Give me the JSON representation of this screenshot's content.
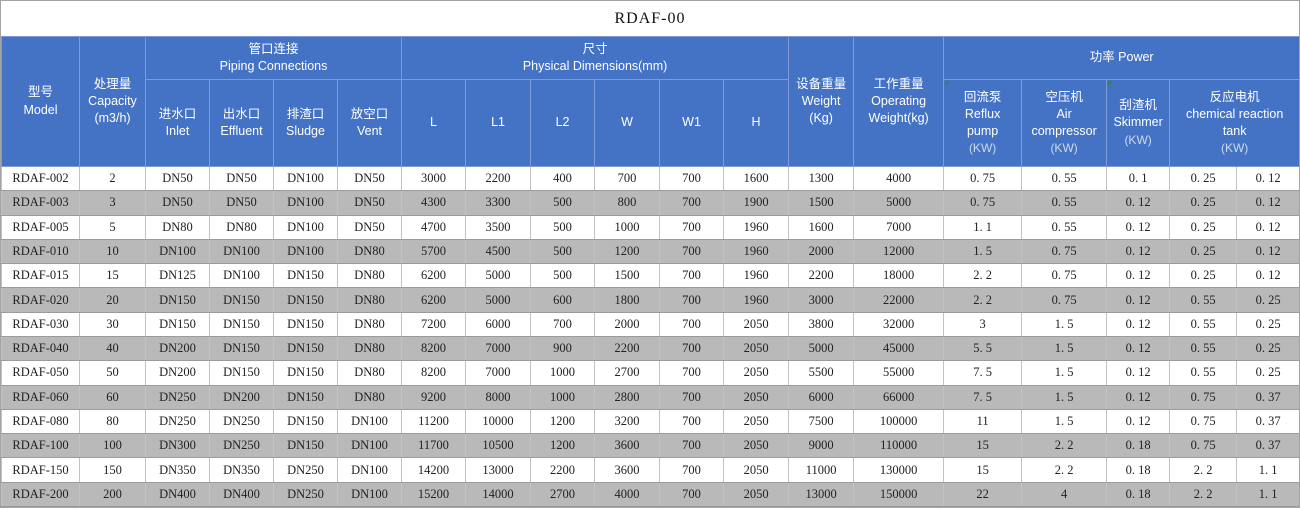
{
  "title": "RDAF-00",
  "colors": {
    "header_bg": "#4472c4",
    "row_alt_gray": "#b9b9b9",
    "corner_marker_green": "#2a8c3c",
    "grid_line": "#9b9b9b"
  },
  "header": {
    "model": "型号\nModel",
    "capacity": "处理量\nCapacity\n(m3/h)",
    "piping_group": "管口连接\nPiping Connections",
    "inlet": "进水口\nInlet",
    "effluent": "出水口\nEffluent",
    "sludge": "排渣口\nSludge",
    "vent": "放空口\nVent",
    "dims_group": "尺寸\nPhysical Dimensions(mm)",
    "l": "L",
    "l1": "L1",
    "l2": "L2",
    "w": "W",
    "w1": "W1",
    "h": "H",
    "weight": "设备重量\nWeight\n(Kg)",
    "operating_weight": "工作重量\nOperating\nWeight(kg)",
    "power_group": "功率  Power",
    "reflux_pump": "回流泵\nReflux\npump",
    "air_compressor": "空压机\nAir\ncompressor",
    "skimmer": "刮渣机\nSkimmer",
    "reaction_tank": "反应电机\nchemical reaction\ntank",
    "kw_unit": "(KW)"
  },
  "column_keys": [
    "model",
    "capacity",
    "inlet",
    "effluent",
    "sludge",
    "vent",
    "L",
    "L1",
    "L2",
    "W",
    "W1",
    "H",
    "weight",
    "operating_weight",
    "reflux_pump",
    "air_compressor",
    "skimmer",
    "reaction_tank_a",
    "reaction_tank_b"
  ],
  "rows": [
    [
      "RDAF-002",
      "2",
      "DN50",
      "DN50",
      "DN100",
      "DN50",
      "3000",
      "2200",
      "400",
      "700",
      "700",
      "1600",
      "1300",
      "4000",
      "0. 75",
      "0. 55",
      "0. 1",
      "0. 25",
      "0. 12"
    ],
    [
      "RDAF-003",
      "3",
      "DN50",
      "DN50",
      "DN100",
      "DN50",
      "4300",
      "3300",
      "500",
      "800",
      "700",
      "1900",
      "1500",
      "5000",
      "0. 75",
      "0. 55",
      "0. 12",
      "0. 25",
      "0. 12"
    ],
    [
      "RDAF-005",
      "5",
      "DN80",
      "DN80",
      "DN100",
      "DN50",
      "4700",
      "3500",
      "500",
      "1000",
      "700",
      "1960",
      "1600",
      "7000",
      "1. 1",
      "0. 55",
      "0. 12",
      "0. 25",
      "0. 12"
    ],
    [
      "RDAF-010",
      "10",
      "DN100",
      "DN100",
      "DN100",
      "DN80",
      "5700",
      "4500",
      "500",
      "1200",
      "700",
      "1960",
      "2000",
      "12000",
      "1. 5",
      "0. 75",
      "0. 12",
      "0. 25",
      "0. 12"
    ],
    [
      "RDAF-015",
      "15",
      "DN125",
      "DN100",
      "DN150",
      "DN80",
      "6200",
      "5000",
      "500",
      "1500",
      "700",
      "1960",
      "2200",
      "18000",
      "2. 2",
      "0. 75",
      "0. 12",
      "0. 25",
      "0. 12"
    ],
    [
      "RDAF-020",
      "20",
      "DN150",
      "DN150",
      "DN150",
      "DN80",
      "6200",
      "5000",
      "600",
      "1800",
      "700",
      "1960",
      "3000",
      "22000",
      "2. 2",
      "0. 75",
      "0. 12",
      "0. 55",
      "0. 25"
    ],
    [
      "RDAF-030",
      "30",
      "DN150",
      "DN150",
      "DN150",
      "DN80",
      "7200",
      "6000",
      "700",
      "2000",
      "700",
      "2050",
      "3800",
      "32000",
      "3",
      "1. 5",
      "0. 12",
      "0. 55",
      "0. 25"
    ],
    [
      "RDAF-040",
      "40",
      "DN200",
      "DN150",
      "DN150",
      "DN80",
      "8200",
      "7000",
      "900",
      "2200",
      "700",
      "2050",
      "5000",
      "45000",
      "5. 5",
      "1. 5",
      "0. 12",
      "0. 55",
      "0. 25"
    ],
    [
      "RDAF-050",
      "50",
      "DN200",
      "DN150",
      "DN150",
      "DN80",
      "8200",
      "7000",
      "1000",
      "2700",
      "700",
      "2050",
      "5500",
      "55000",
      "7. 5",
      "1. 5",
      "0. 12",
      "0. 55",
      "0. 25"
    ],
    [
      "RDAF-060",
      "60",
      "DN250",
      "DN200",
      "DN150",
      "DN80",
      "9200",
      "8000",
      "1000",
      "2800",
      "700",
      "2050",
      "6000",
      "66000",
      "7. 5",
      "1. 5",
      "0. 12",
      "0. 75",
      "0. 37"
    ],
    [
      "RDAF-080",
      "80",
      "DN250",
      "DN250",
      "DN150",
      "DN100",
      "11200",
      "10000",
      "1200",
      "3200",
      "700",
      "2050",
      "7500",
      "100000",
      "11",
      "1. 5",
      "0. 12",
      "0. 75",
      "0. 37"
    ],
    [
      "RDAF-100",
      "100",
      "DN300",
      "DN250",
      "DN150",
      "DN100",
      "11700",
      "10500",
      "1200",
      "3600",
      "700",
      "2050",
      "9000",
      "110000",
      "15",
      "2. 2",
      "0. 18",
      "0. 75",
      "0. 37"
    ],
    [
      "RDAF-150",
      "150",
      "DN350",
      "DN350",
      "DN250",
      "DN100",
      "14200",
      "13000",
      "2200",
      "3600",
      "700",
      "2050",
      "11000",
      "130000",
      "15",
      "2. 2",
      "0. 18",
      "2. 2",
      "1. 1"
    ],
    [
      "RDAF-200",
      "200",
      "DN400",
      "DN400",
      "DN250",
      "DN100",
      "15200",
      "14000",
      "2700",
      "4000",
      "700",
      "2050",
      "13000",
      "150000",
      "22",
      "4",
      "0. 18",
      "2. 2",
      "1. 1"
    ]
  ]
}
